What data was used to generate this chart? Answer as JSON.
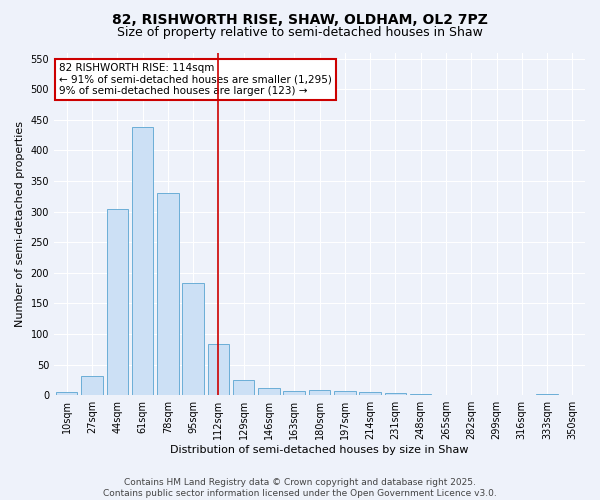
{
  "title": "82, RISHWORTH RISE, SHAW, OLDHAM, OL2 7PZ",
  "subtitle": "Size of property relative to semi-detached houses in Shaw",
  "xlabel": "Distribution of semi-detached houses by size in Shaw",
  "ylabel": "Number of semi-detached properties",
  "categories": [
    "10sqm",
    "27sqm",
    "44sqm",
    "61sqm",
    "78sqm",
    "95sqm",
    "112sqm",
    "129sqm",
    "146sqm",
    "163sqm",
    "180sqm",
    "197sqm",
    "214sqm",
    "231sqm",
    "248sqm",
    "265sqm",
    "282sqm",
    "299sqm",
    "316sqm",
    "333sqm",
    "350sqm"
  ],
  "values": [
    5,
    32,
    305,
    438,
    330,
    183,
    83,
    25,
    12,
    7,
    8,
    7,
    5,
    3,
    2,
    1,
    0,
    0,
    0,
    2,
    0
  ],
  "bar_color": "#cce0f5",
  "bar_edge_color": "#6baed6",
  "vline_x_index": 6,
  "vline_color": "#cc0000",
  "annotation_text": "82 RISHWORTH RISE: 114sqm\n← 91% of semi-detached houses are smaller (1,295)\n9% of semi-detached houses are larger (123) →",
  "annotation_box_color": "#cc0000",
  "annotation_bg": "#ffffff",
  "ylim": [
    0,
    560
  ],
  "yticks": [
    0,
    50,
    100,
    150,
    200,
    250,
    300,
    350,
    400,
    450,
    500,
    550
  ],
  "footer_line1": "Contains HM Land Registry data © Crown copyright and database right 2025.",
  "footer_line2": "Contains public sector information licensed under the Open Government Licence v3.0.",
  "bg_color": "#eef2fa",
  "plot_bg_color": "#eef2fa",
  "title_fontsize": 10,
  "subtitle_fontsize": 9,
  "axis_label_fontsize": 8,
  "tick_fontsize": 7,
  "footer_fontsize": 6.5,
  "annotation_fontsize": 7.5
}
